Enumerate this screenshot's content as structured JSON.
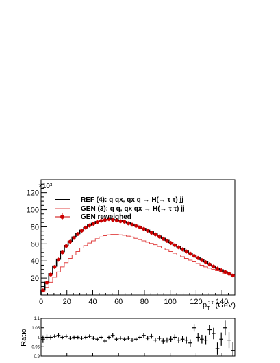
{
  "chart_data": [
    {
      "type": "line",
      "exponent_label": "×10³",
      "xlabel_main": "p",
      "xlabel_sub": "T",
      "xlabel_sup": "τ τ",
      "xlabel_unit": " (GeV)",
      "ylabel": "",
      "xlim": [
        0,
        150
      ],
      "ylim": [
        0,
        135
      ],
      "yticks": [
        20,
        40,
        60,
        80,
        100,
        120
      ],
      "xticks": [
        0,
        20,
        40,
        60,
        80,
        100,
        120,
        140
      ],
      "legend_position": "top-left",
      "legend": [
        {
          "label": "REF (4): q qx, qx q   → H(→ τ τ) jj",
          "color": "#000000",
          "style": "line"
        },
        {
          "label": "GEN (3): q q, qx qx → H(→ τ τ) jj",
          "color": "#e04040",
          "style": "line"
        },
        {
          "label": "GEN reweighed",
          "color": "#cc0000",
          "style": "marker"
        }
      ],
      "bin_width": 3,
      "x": [
        1.5,
        4.5,
        7.5,
        10.5,
        13.5,
        16.5,
        19.5,
        22.5,
        25.5,
        28.5,
        31.5,
        34.5,
        37.5,
        40.5,
        43.5,
        46.5,
        49.5,
        52.5,
        55.5,
        58.5,
        61.5,
        64.5,
        67.5,
        70.5,
        73.5,
        76.5,
        79.5,
        82.5,
        85.5,
        88.5,
        91.5,
        94.5,
        97.5,
        100.5,
        103.5,
        106.5,
        109.5,
        112.5,
        115.5,
        118.5,
        121.5,
        124.5,
        127.5,
        130.5,
        133.5,
        136.5,
        139.5,
        142.5,
        145.5,
        148.5
      ],
      "series": [
        {
          "name": "REF (4): q qx, qx q   → H(→ τ τ) jj",
          "color": "#000000",
          "values": [
            6,
            15,
            25,
            34,
            42,
            51,
            58,
            63,
            68,
            72,
            76,
            79,
            82,
            84,
            86,
            87,
            88,
            88.5,
            88.5,
            88,
            87,
            86,
            84.5,
            83,
            81.5,
            80,
            78,
            76,
            74,
            71.5,
            69,
            66.5,
            64,
            61.5,
            59,
            56.5,
            54,
            51.5,
            49,
            46.5,
            44,
            41.5,
            39,
            36.5,
            34,
            31.5,
            29.5,
            27.5,
            25.5,
            23.5
          ]
        },
        {
          "name": "GEN (3): q q, qx qx → H(→ τ τ) jj",
          "color": "#e04040",
          "values": [
            4,
            9,
            15,
            21,
            27,
            33,
            38,
            43,
            47,
            51,
            55,
            58,
            61,
            63.5,
            66,
            68,
            69.5,
            70.5,
            71,
            71,
            70.5,
            70,
            69,
            68,
            66.5,
            65,
            63.5,
            62,
            60.5,
            59,
            57,
            55,
            53,
            51,
            49,
            47,
            45,
            43,
            41,
            39,
            37,
            35,
            33,
            31.5,
            30,
            28.5,
            27,
            25.5,
            24,
            22.5
          ]
        },
        {
          "name": "GEN reweighed",
          "color": "#cc0000",
          "values": [
            5.5,
            14.5,
            24,
            33,
            41.5,
            50,
            57.5,
            62.5,
            67,
            71.5,
            75.5,
            79,
            81.5,
            83.5,
            85.5,
            87,
            88,
            89,
            88,
            87.5,
            86.5,
            86,
            84,
            82.5,
            81,
            79.5,
            77.5,
            75.5,
            73,
            71,
            68.5,
            66,
            63.5,
            61,
            58.5,
            56,
            53.5,
            51,
            48.5,
            46,
            43.5,
            41,
            38.5,
            36,
            33.5,
            31,
            29,
            27,
            25,
            23
          ]
        }
      ]
    },
    {
      "type": "scatter",
      "ylabel": "Ratio",
      "xlim": [
        0,
        150
      ],
      "ylim": [
        0.9,
        1.1
      ],
      "yticks_labels": [
        "0.9",
        "0.95",
        "1",
        "1.05",
        "1.1"
      ],
      "yticks": [
        0.9,
        0.95,
        1.0,
        1.05,
        1.1
      ],
      "xticks": [
        0,
        20,
        40,
        60,
        80,
        100,
        120,
        140
      ],
      "x": [
        1.5,
        4.5,
        7.5,
        10.5,
        13.5,
        16.5,
        19.5,
        22.5,
        25.5,
        28.5,
        31.5,
        34.5,
        37.5,
        40.5,
        43.5,
        46.5,
        49.5,
        52.5,
        55.5,
        58.5,
        61.5,
        64.5,
        67.5,
        70.5,
        73.5,
        76.5,
        79.5,
        82.5,
        85.5,
        88.5,
        91.5,
        94.5,
        97.5,
        100.5,
        103.5,
        106.5,
        109.5,
        112.5,
        115.5,
        118.5,
        121.5,
        124.5,
        127.5,
        130.5,
        133.5,
        136.5,
        139.5,
        142.5,
        145.5,
        148.5
      ],
      "values": [
        0.99,
        1.0,
        1.0,
        1.005,
        1.01,
        1.0,
        1.005,
        0.995,
        1.0,
        1.0,
        0.995,
        1.0,
        1.005,
        0.995,
        0.99,
        1.0,
        0.98,
        1.0,
        1.01,
        0.99,
        0.995,
        0.99,
        0.995,
        0.985,
        0.99,
        1.0,
        1.01,
        0.995,
        1.005,
        0.985,
        0.995,
        0.98,
        0.985,
        0.99,
        1.0,
        0.985,
        0.99,
        0.985,
        0.97,
        1.05,
        1.0,
        0.99,
        0.985,
        1.04,
        1.02,
        0.94,
        0.99,
        1.05,
        0.985,
        0.93
      ],
      "errors": [
        0.02,
        0.015,
        0.012,
        0.01,
        0.01,
        0.01,
        0.01,
        0.01,
        0.01,
        0.01,
        0.01,
        0.01,
        0.01,
        0.01,
        0.01,
        0.01,
        0.01,
        0.01,
        0.01,
        0.01,
        0.01,
        0.01,
        0.01,
        0.01,
        0.01,
        0.01,
        0.012,
        0.012,
        0.012,
        0.013,
        0.013,
        0.014,
        0.014,
        0.015,
        0.015,
        0.016,
        0.017,
        0.018,
        0.019,
        0.02,
        0.022,
        0.023,
        0.025,
        0.027,
        0.03,
        0.032,
        0.035,
        0.038,
        0.042,
        0.045
      ]
    }
  ]
}
